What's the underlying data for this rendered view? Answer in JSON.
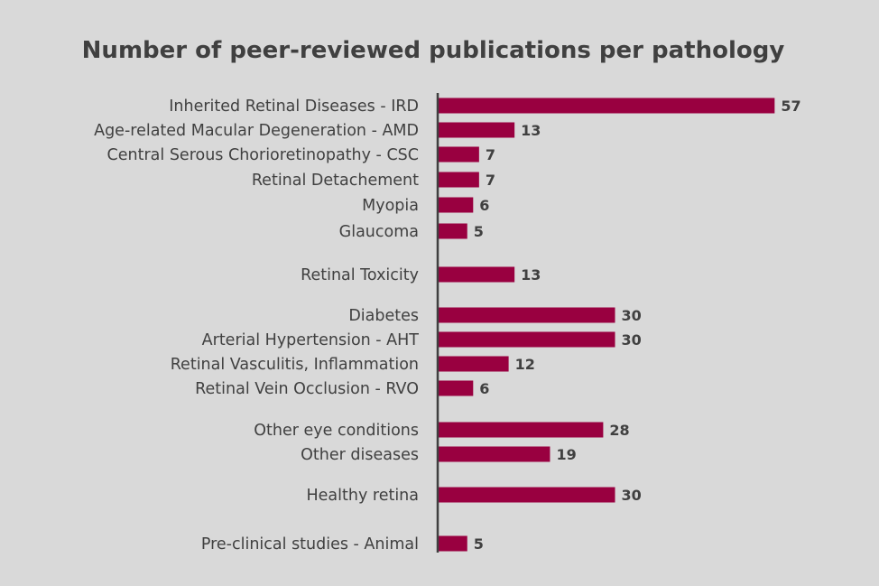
{
  "chart_data": {
    "type": "bar",
    "orientation": "horizontal",
    "title": "Number of peer-reviewed publications per pathology",
    "xlabel": "",
    "ylabel": "",
    "grid": false,
    "legend": "none",
    "bar_color": "#990040",
    "axis_color": "#404040",
    "background": "#d9d9d9",
    "categories": [
      "Inherited Retinal Diseases - IRD",
      "Age-related Macular Degeneration - AMD",
      "Central Serous Chorioretinopathy - CSC",
      "Retinal Detachement",
      "Myopia",
      "Glaucoma",
      "Retinal Toxicity",
      "Diabetes",
      "Arterial Hypertension - AHT",
      "Retinal Vasculitis, Inflammation",
      "Retinal Vein Occlusion - RVO",
      "Other eye conditions",
      "Other diseases",
      "Healthy retina",
      "Pre-clinical studies - Animal"
    ],
    "values": [
      57,
      13,
      7,
      7,
      6,
      5,
      13,
      30,
      30,
      12,
      6,
      28,
      19,
      30,
      5
    ],
    "xlim": [
      0,
      60
    ]
  }
}
